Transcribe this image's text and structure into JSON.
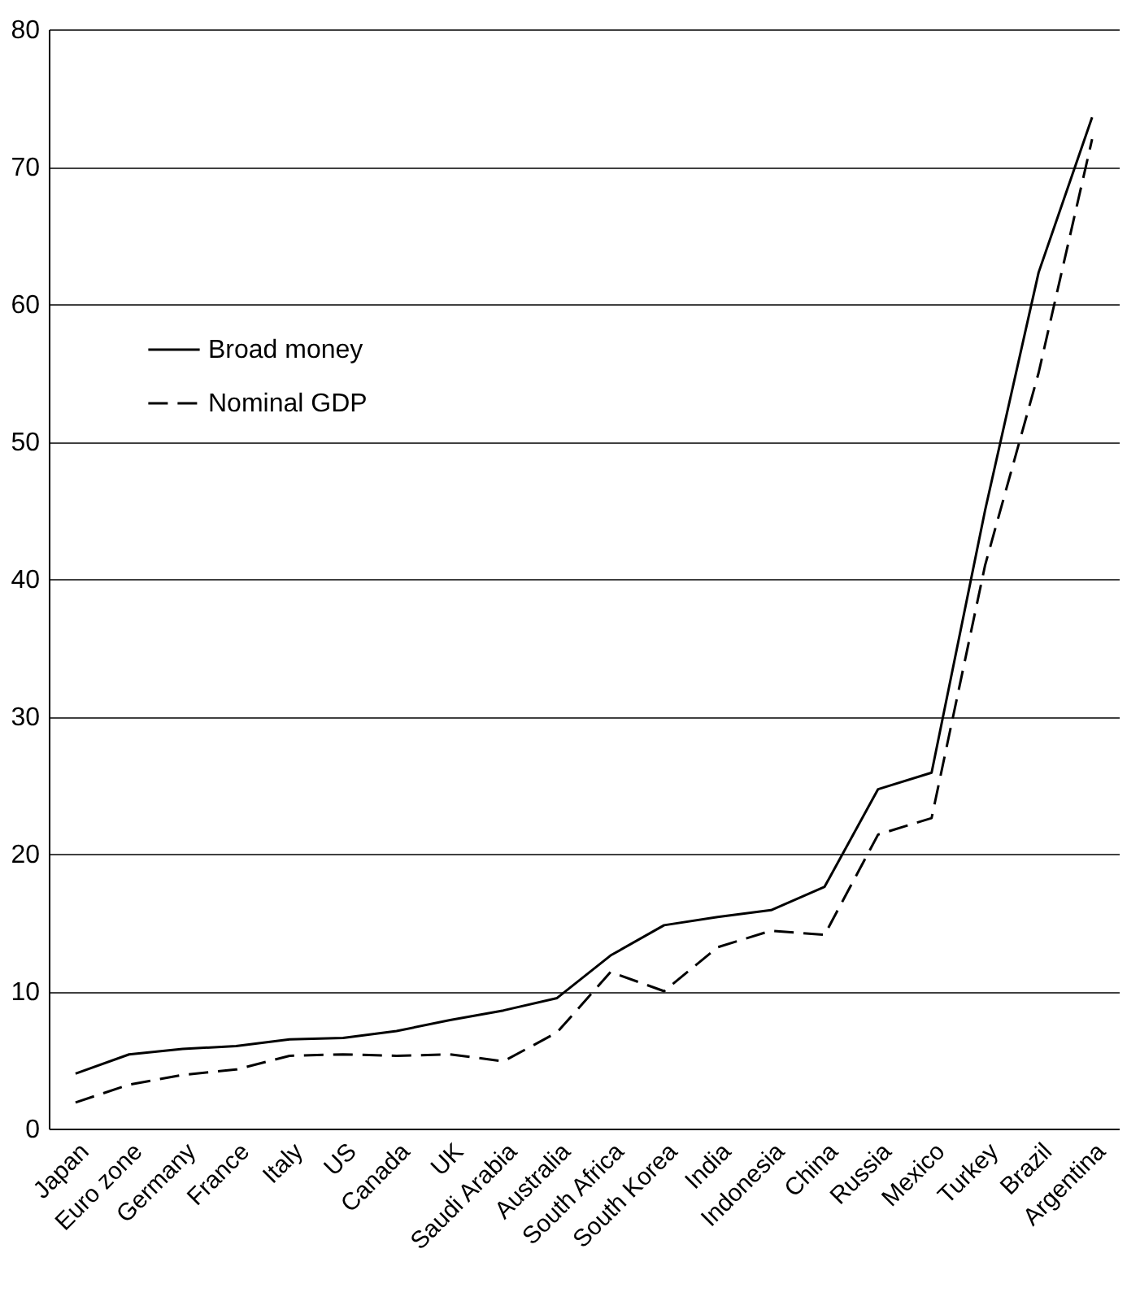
{
  "chart_data": {
    "type": "line",
    "categories": [
      "Japan",
      "Euro zone",
      "Germany",
      "France",
      "Italy",
      "US",
      "Canada",
      "UK",
      "Saudi Arabia",
      "Australia",
      "South Africa",
      "South Korea",
      "India",
      "Indonesia",
      "China",
      "Russia",
      "Mexico",
      "Turkey",
      "Brazil",
      "Argentina"
    ],
    "series": [
      {
        "name": "Broad money",
        "color": "#000000",
        "line_style": "solid",
        "values": [
          4.0,
          5.4,
          5.8,
          6.0,
          6.5,
          6.6,
          7.1,
          7.9,
          8.6,
          9.5,
          12.6,
          14.8,
          15.4,
          15.9,
          17.6,
          24.7,
          25.9,
          45,
          62.3,
          73.6
        ]
      },
      {
        "name": "Nominal GDP",
        "color": "#000000",
        "line_style": "dashed",
        "values": [
          1.9,
          3.2,
          3.9,
          4.3,
          5.3,
          5.4,
          5.3,
          5.4,
          4.9,
          7.0,
          11.4,
          10.0,
          13.2,
          14.4,
          14.1,
          21.4,
          22.6,
          41,
          55,
          72
        ]
      }
    ],
    "ylim": [
      0,
      80
    ],
    "yticks": [
      0,
      10,
      20,
      30,
      40,
      50,
      60,
      70,
      80
    ],
    "grid": "y",
    "legend": "top left"
  }
}
